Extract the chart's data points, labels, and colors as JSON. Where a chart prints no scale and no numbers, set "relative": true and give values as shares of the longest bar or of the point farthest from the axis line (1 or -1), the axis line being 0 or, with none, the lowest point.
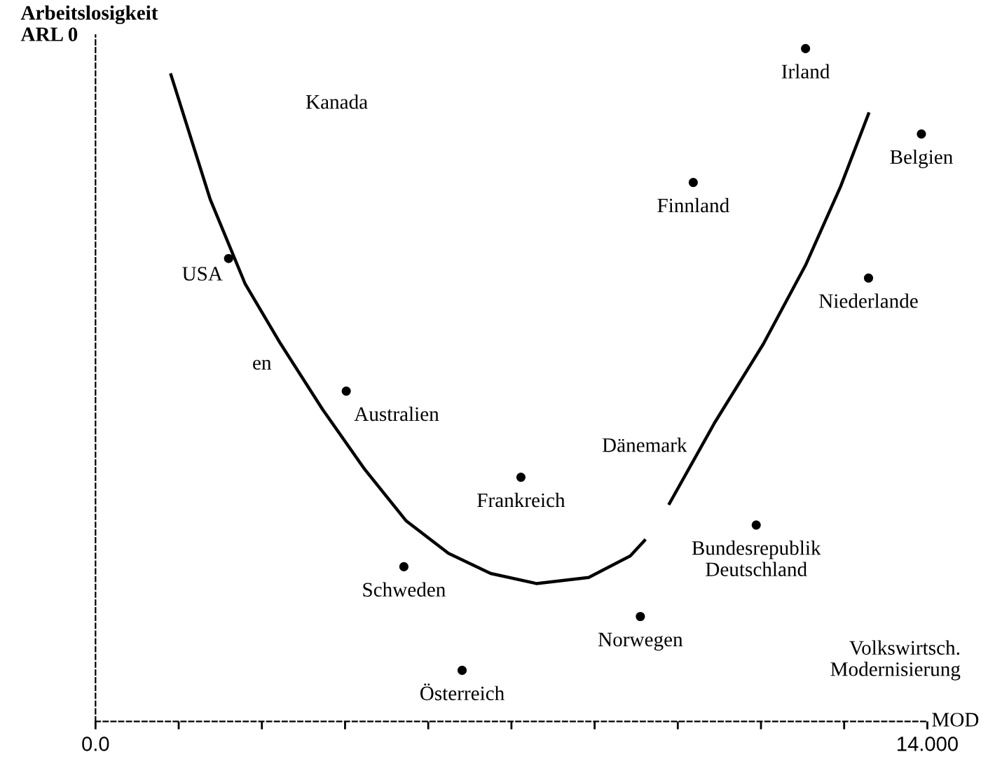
{
  "chart_data": {
    "type": "scatter",
    "relative": true,
    "ylabel": "Arbeitslosigkeit\nARL 0",
    "xlabel": "MOD",
    "annotations": [
      "Volkswirtsch.\nModernisierung",
      "Kanada",
      "Dänemark",
      "en"
    ],
    "xlim": [
      0,
      14
    ],
    "xticks": [
      {
        "value": 0,
        "label": "0.0"
      },
      {
        "value": 1.4,
        "label": null
      },
      {
        "value": 2.8,
        "label": null
      },
      {
        "value": 4.2,
        "label": null
      },
      {
        "value": 5.6,
        "label": null
      },
      {
        "value": 7.0,
        "label": null
      },
      {
        "value": 8.4,
        "label": null
      },
      {
        "value": 9.8,
        "label": null
      },
      {
        "value": 11.2,
        "label": null
      },
      {
        "value": 12.6,
        "label": null
      },
      {
        "value": 14,
        "label": "14.000"
      }
    ],
    "marker": "circle",
    "grid": false,
    "legend": false,
    "series": [
      {
        "type": "line",
        "marker": "none",
        "color": "#000000",
        "x": [
          1.27,
          1.93,
          2.52,
          3.11,
          3.82,
          4.52,
          5.23,
          5.94,
          6.65,
          7.42,
          8.3,
          9.0,
          9.24,
          9.4,
          9.66,
          10.42,
          11.24,
          11.95,
          12.54,
          13.01
        ],
        "values": [
          0.961,
          0.776,
          0.65,
          0.562,
          0.464,
          0.376,
          0.298,
          0.25,
          0.22,
          0.205,
          0.214,
          0.246,
          0.269,
          null,
          0.324,
          0.444,
          0.561,
          0.678,
          0.795,
          0.903
        ]
      },
      {
        "name": "Irland",
        "color": "#000000",
        "x": [
          11.95
        ],
        "values": [
          1.0
        ]
      },
      {
        "name": "Belgien",
        "color": "#000000",
        "x": [
          13.9
        ],
        "values": [
          0.873
        ]
      },
      {
        "name": "Finnland",
        "color": "#000000",
        "x": [
          10.06
        ],
        "values": [
          0.801
        ]
      },
      {
        "name": "USA",
        "color": "#000000",
        "x": [
          2.24
        ],
        "values": [
          0.688
        ]
      },
      {
        "name": "Niederlande",
        "color": "#000000",
        "x": [
          13.01
        ],
        "values": [
          0.659
        ]
      },
      {
        "name": "Australien",
        "color": "#000000",
        "x": [
          4.22
        ],
        "values": [
          0.491
        ]
      },
      {
        "name": "Frankreich",
        "color": "#000000",
        "x": [
          7.16
        ],
        "values": [
          0.363
        ]
      },
      {
        "name": "Bundesrepublik\nDeutschland",
        "color": "#000000",
        "x": [
          11.12
        ],
        "values": [
          0.292
        ]
      },
      {
        "name": "Schweden",
        "color": "#000000",
        "x": [
          5.19
        ],
        "values": [
          0.23
        ]
      },
      {
        "name": "Norwegen",
        "color": "#000000",
        "x": [
          9.17
        ],
        "values": [
          0.156
        ]
      },
      {
        "name": "Österreich",
        "color": "#000000",
        "x": [
          6.17
        ],
        "values": [
          0.076
        ]
      }
    ]
  }
}
